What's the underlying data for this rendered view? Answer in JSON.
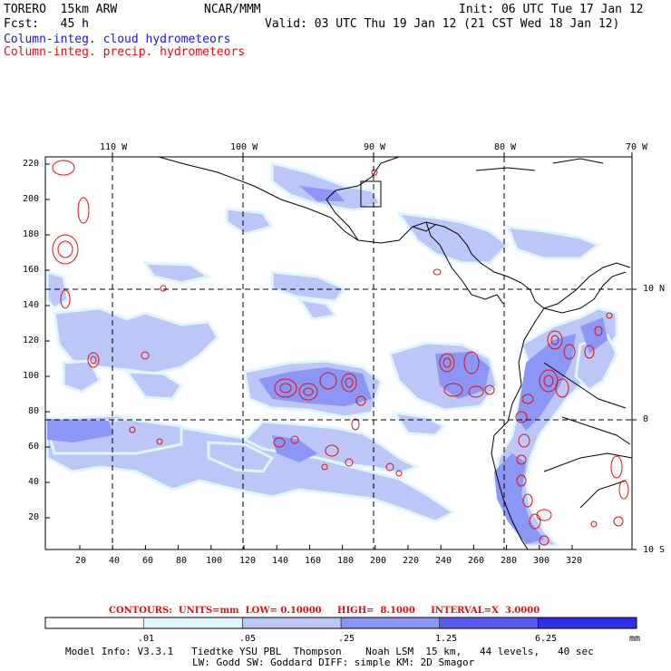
{
  "header": {
    "model": "TORERO  15km ARW",
    "center": "NCAR/MMM",
    "init": "Init: 06 UTC Tue 17 Jan 12",
    "fcst": "Fcst:   45 h",
    "valid": "Valid: 03 UTC Thu 19 Jan 12 (21 CST Wed 18 Jan 12)",
    "cloud_label": "Column-integ. cloud hydrometeors",
    "precip_label": "Column-integ. precip. hydrometeors"
  },
  "axes": {
    "top_lon": [
      "110 W",
      "100 W",
      "90 W",
      "80 W",
      "70 W"
    ],
    "right_lat": [
      "10 N",
      "0",
      "10 S"
    ],
    "left_y": [
      "220",
      "200",
      "180",
      "160",
      "140",
      "120",
      "100",
      "80",
      "60",
      "40",
      "20"
    ],
    "bottom_x": [
      "20",
      "40",
      "60",
      "80",
      "100",
      "120",
      "140",
      "160",
      "180",
      "200",
      "220",
      "240",
      "260",
      "280",
      "300",
      "320"
    ]
  },
  "contours": {
    "text": "CONTOURS:  UNITS=mm  LOW= 0.10000     HIGH=  8.1000     INTERVAL=X  3.0000"
  },
  "colorbar": {
    "labels": [
      ".01",
      ".05",
      ".25",
      "1.25",
      "6.25"
    ],
    "unit": "mm",
    "colors": [
      "#ffffff",
      "#dff6fb",
      "#bcc6f7",
      "#8c96f5",
      "#5a5af0",
      "#2f2fe8"
    ]
  },
  "footer": {
    "line1": "Model Info: V3.3.1   Tiedtke YSU PBL  Thompson    Noah LSM  15 km,   44 levels,   40 sec",
    "line2": "LW: Godd SW: Goddard DIFF: simple KM: 2D Smagor"
  },
  "colors": {
    "cloud": "#1a1ad6",
    "precip": "#e01010",
    "fill_light": "#bcc6f7",
    "fill_mid": "#8c96f5",
    "fill_cyan": "#dff6fb"
  }
}
